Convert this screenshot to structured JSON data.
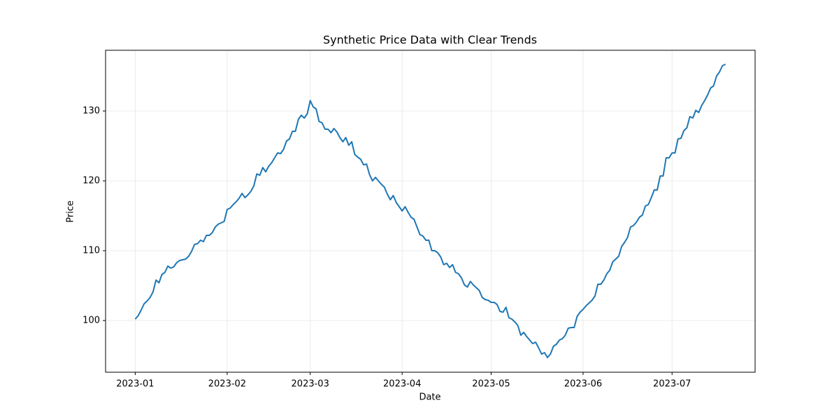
{
  "chart_data": {
    "type": "line",
    "title": "Synthetic Price Data with Clear Trends",
    "x_label": "Date",
    "y_label": "Price",
    "color": "#1f77b4",
    "grid": true,
    "values": [
      100.2,
      100.7,
      101.5,
      102.4,
      102.8,
      103.3,
      104.1,
      105.8,
      105.4,
      106.6,
      106.9,
      107.8,
      107.5,
      107.7,
      108.3,
      108.6,
      108.7,
      108.8,
      109.2,
      109.9,
      110.9,
      111.0,
      111.5,
      111.3,
      112.2,
      112.2,
      112.6,
      113.4,
      113.8,
      114.0,
      114.2,
      115.9,
      116.1,
      116.6,
      117.0,
      117.5,
      118.2,
      117.6,
      118.0,
      118.5,
      119.3,
      121.0,
      120.8,
      121.9,
      121.3,
      122.1,
      122.6,
      123.3,
      124.0,
      123.9,
      124.5,
      125.7,
      126.0,
      127.1,
      127.1,
      128.8,
      129.4,
      129.0,
      129.6,
      131.5,
      130.6,
      130.3,
      128.5,
      128.3,
      127.4,
      127.4,
      126.9,
      127.5,
      127.0,
      126.2,
      125.6,
      126.2,
      125.1,
      125.6,
      123.8,
      123.4,
      123.1,
      122.3,
      122.4,
      120.9,
      120.0,
      120.5,
      120.0,
      119.5,
      119.1,
      118.1,
      117.3,
      117.9,
      116.9,
      116.3,
      115.7,
      116.3,
      115.5,
      114.8,
      114.5,
      113.4,
      112.3,
      112.1,
      111.5,
      111.5,
      110.0,
      110.0,
      109.7,
      109.1,
      108.0,
      108.2,
      107.6,
      108.0,
      106.9,
      106.7,
      106.1,
      105.1,
      104.8,
      105.6,
      105.1,
      104.7,
      104.3,
      103.3,
      103.0,
      102.9,
      102.6,
      102.6,
      102.3,
      101.3,
      101.2,
      101.9,
      100.4,
      100.2,
      99.8,
      99.3,
      97.9,
      98.3,
      97.7,
      97.2,
      96.7,
      96.9,
      96.1,
      95.2,
      95.4,
      94.7,
      95.2,
      96.3,
      96.6,
      97.2,
      97.4,
      97.9,
      98.9,
      99.0,
      99.0,
      100.6,
      101.2,
      101.6,
      102.1,
      102.5,
      102.9,
      103.5,
      105.2,
      105.2,
      105.8,
      106.7,
      107.2,
      108.4,
      108.8,
      109.2,
      110.6,
      111.2,
      111.9,
      113.4,
      113.6,
      114.1,
      114.8,
      115.1,
      116.4,
      116.6,
      117.6,
      118.7,
      118.7,
      120.7,
      120.7,
      123.3,
      123.3,
      124.0,
      124.0,
      126.0,
      126.1,
      127.2,
      127.6,
      129.2,
      129.0,
      130.1,
      129.8,
      130.8,
      131.5,
      132.3,
      133.3,
      133.6,
      135.0,
      135.6,
      136.5,
      136.7
    ],
    "xlim": [
      -10,
      209
    ],
    "xticks": [
      {
        "value": 0,
        "label": "2023-01"
      },
      {
        "value": 31,
        "label": "2023-02"
      },
      {
        "value": 59,
        "label": "2023-03"
      },
      {
        "value": 90,
        "label": "2023-04"
      },
      {
        "value": 120,
        "label": "2023-05"
      },
      {
        "value": 151,
        "label": "2023-06"
      },
      {
        "value": 181,
        "label": "2023-07"
      }
    ],
    "ylim": [
      92.6,
      138.7
    ],
    "yticks": [
      100,
      110,
      120,
      130
    ]
  }
}
